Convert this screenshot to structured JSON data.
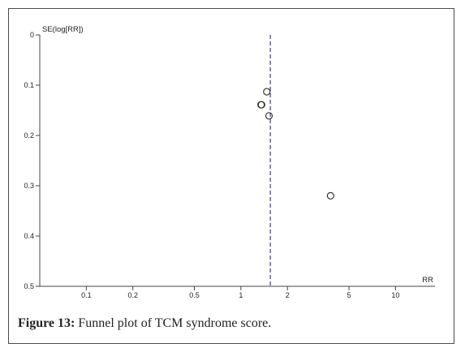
{
  "chart_data": {
    "type": "scatter",
    "subtype": "funnel plot",
    "xlabel": "RR",
    "ylabel": "SE(log[RR])",
    "x_scale": "log",
    "x_ticks": [
      0.1,
      0.2,
      0.5,
      1,
      2,
      5,
      10
    ],
    "x_tick_labels": [
      "0.1",
      "0.2",
      "0.5",
      "1",
      "2",
      "5",
      "10"
    ],
    "xlim": [
      0.05,
      18
    ],
    "y_reversed": true,
    "y_ticks": [
      0,
      0.1,
      0.2,
      0.3,
      0.4,
      0.5
    ],
    "y_tick_labels": [
      "0",
      "0.1",
      "0.2",
      "0.3",
      "0.4",
      "0.5"
    ],
    "ylim": [
      0,
      0.5
    ],
    "summary_rr": 1.55,
    "points": [
      {
        "x": 1.47,
        "y": 0.113
      },
      {
        "x": 1.35,
        "y": 0.139
      },
      {
        "x": 1.36,
        "y": 0.139
      },
      {
        "x": 1.52,
        "y": 0.161
      },
      {
        "x": 3.8,
        "y": 0.32
      }
    ],
    "grid": false,
    "legend": "none",
    "colors": {
      "reference_line": "#3a3a8c",
      "points": "#333333",
      "axes": "#444444"
    }
  },
  "caption": {
    "label": "Figure 13:",
    "text": " Funnel plot of TCM syndrome score."
  }
}
